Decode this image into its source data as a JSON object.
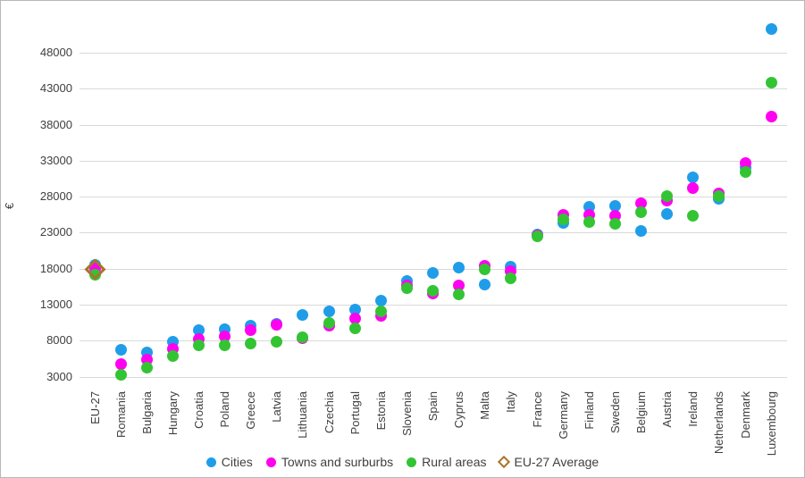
{
  "chart_data": {
    "type": "scatter",
    "title": "",
    "ylabel": "€",
    "xlabel": "",
    "grid": true,
    "legend_position": "bottom",
    "y_ticks": [
      3000,
      8000,
      13000,
      18000,
      23000,
      28000,
      33000,
      38000,
      43000,
      48000
    ],
    "ylim": [
      3000,
      52000
    ],
    "categories": [
      "EU-27",
      "Romania",
      "Bulgaria",
      "Hungary",
      "Croatia",
      "Poland",
      "Greece",
      "Latvia",
      "Lithuania",
      "Czechia",
      "Portugal",
      "Estonia",
      "Slovenia",
      "Spain",
      "Cyprus",
      "Malta",
      "Italy",
      "France",
      "Germany",
      "Finland",
      "Sweden",
      "Belgium",
      "Austria",
      "Ireland",
      "Netherlands",
      "Denmark",
      "Luxembourg"
    ],
    "series": [
      {
        "name": "Cities",
        "marker": "circle",
        "color": "#1f9de9",
        "values": [
          18500,
          6700,
          6300,
          7900,
          9500,
          9600,
          10100,
          10300,
          11600,
          12100,
          12300,
          13600,
          16300,
          17400,
          18100,
          15800,
          18300,
          22800,
          24300,
          26600,
          26700,
          23200,
          25600,
          30700,
          27700,
          32000,
          51300
        ]
      },
      {
        "name": "Towns and surburbs",
        "marker": "circle",
        "color": "#ff00f0",
        "values": [
          18000,
          4700,
          5300,
          6800,
          8200,
          8600,
          9400,
          10200,
          8300,
          10100,
          11100,
          11500,
          15700,
          14500,
          15700,
          18400,
          17700,
          22600,
          25500,
          25500,
          25300,
          27100,
          27400,
          29200,
          28500,
          32700,
          39100
        ]
      },
      {
        "name": "Rural areas",
        "marker": "circle",
        "color": "#33c433",
        "values": [
          17100,
          3300,
          4200,
          5800,
          7300,
          7400,
          7600,
          7900,
          8500,
          10400,
          9700,
          12100,
          15300,
          14900,
          14400,
          17900,
          16600,
          22500,
          24800,
          24500,
          24200,
          25800,
          28100,
          25400,
          28100,
          31400,
          43900
        ]
      },
      {
        "name": "EU-27 Average",
        "marker": "diamond-outline",
        "color": "#a9742c",
        "values": [
          17900,
          null,
          null,
          null,
          null,
          null,
          null,
          null,
          null,
          null,
          null,
          null,
          null,
          null,
          null,
          null,
          null,
          null,
          null,
          null,
          null,
          null,
          null,
          null,
          null,
          null,
          null
        ]
      }
    ]
  },
  "colors": {
    "gridline": "#d9d9d9",
    "axis_text": "#404040",
    "frame_border": "#b8b8b8"
  }
}
